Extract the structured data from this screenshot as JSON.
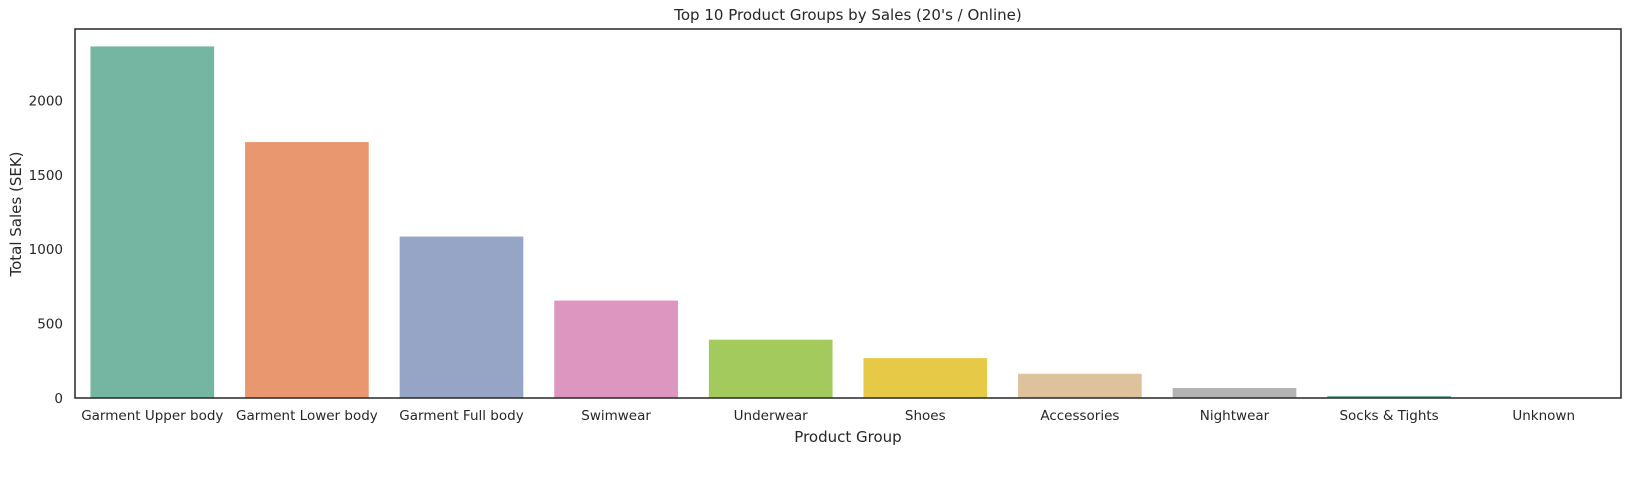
{
  "chart_data": {
    "type": "bar",
    "title": "Top 10 Product Groups by Sales (20's / Online)",
    "xlabel": "Product Group",
    "ylabel": "Total Sales (SEK)",
    "categories": [
      "Garment Upper body",
      "Garment Lower body",
      "Garment Full body",
      "Swimwear",
      "Underwear",
      "Shoes",
      "Accessories",
      "Nightwear",
      "Socks & Tights",
      "Unknown"
    ],
    "values": [
      2363,
      1720,
      1085,
      655,
      392,
      268,
      163,
      67,
      14,
      2
    ],
    "colors": [
      "#75b6a2",
      "#e8976f",
      "#96a5c5",
      "#dc96c0",
      "#a3ca5c",
      "#e6c946",
      "#dec29c",
      "#b3b3b3",
      "#75b6a2",
      "#e8976f"
    ],
    "ylim": [
      0,
      2480
    ],
    "yticks": [
      0,
      500,
      1000,
      1500,
      2000
    ],
    "grid": false
  }
}
